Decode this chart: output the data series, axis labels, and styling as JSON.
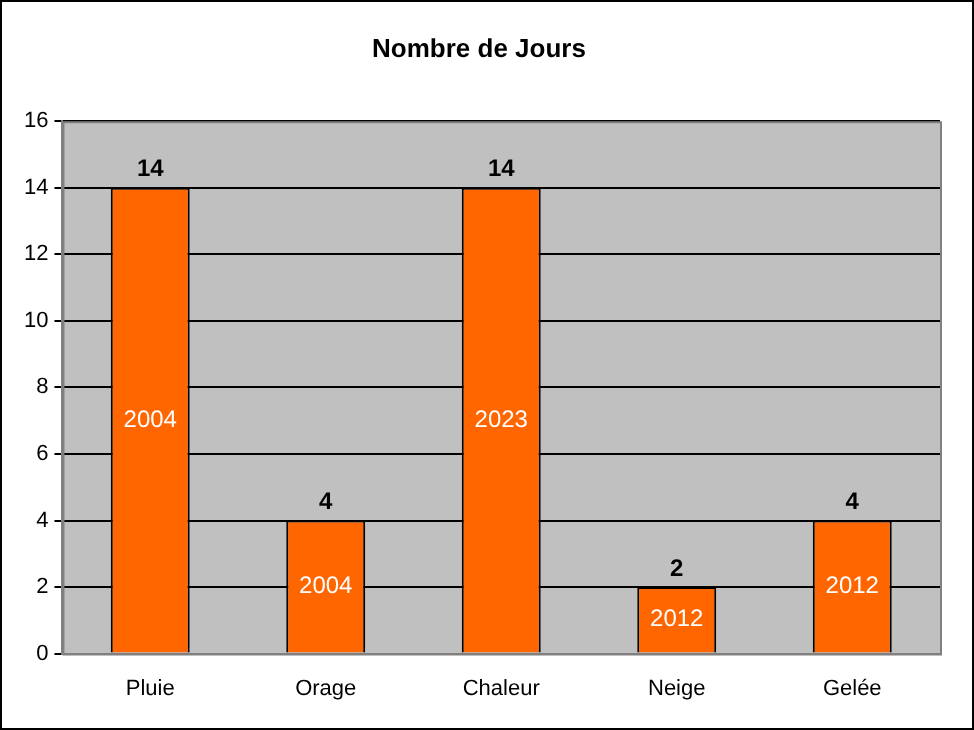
{
  "chart_data": {
    "type": "bar",
    "title": "Nombre de Jours",
    "categories": [
      "Pluie",
      "Orage",
      "Chaleur",
      "Neige",
      "Gelée"
    ],
    "values": [
      14,
      4,
      14,
      2,
      4
    ],
    "color": "#ff6600",
    "ylim": [
      0,
      16
    ],
    "yticks": [
      0,
      2,
      4,
      6,
      8,
      10,
      12,
      14,
      16
    ],
    "grid": "y",
    "data_labels": true,
    "annotations": [
      "2004",
      "2004",
      "2023",
      "2012",
      "2012"
    ]
  }
}
